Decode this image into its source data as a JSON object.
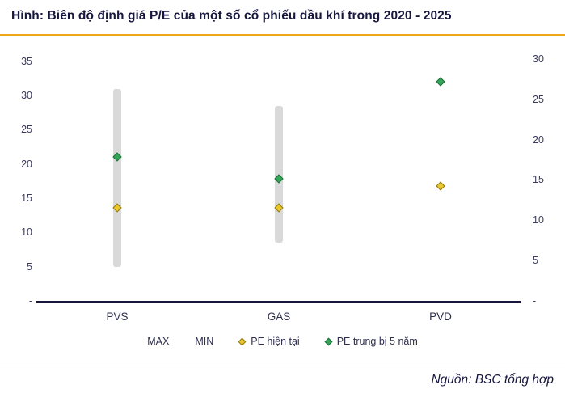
{
  "title": "Hình: Biên độ định giá P/E của một số cổ phiếu dầu khí trong 2020 - 2025",
  "footer": {
    "source": "Nguồn: BSC tổng hợp"
  },
  "colors": {
    "accent_rule": "#F2A71B",
    "footer_rule": "#CFCFCF",
    "title_text": "#16163F"
  },
  "chart_data": {
    "type": "scatter",
    "title": "Hình: Biên độ định giá P/E của một số cổ phiếu dầu khí trong 2020 - 2025",
    "categories": [
      "PVS",
      "GAS",
      "PVD"
    ],
    "left_axis": {
      "min": 0,
      "max": 35,
      "plot_max": 36.5,
      "ticks": [
        {
          "label": "35",
          "value": 35
        },
        {
          "label": "30",
          "value": 30
        },
        {
          "label": "25",
          "value": 25
        },
        {
          "label": "20",
          "value": 20
        },
        {
          "label": "15",
          "value": 15
        },
        {
          "label": "10",
          "value": 10
        },
        {
          "label": "5",
          "value": 5
        },
        {
          "label": "-",
          "value": 0
        }
      ]
    },
    "right_axis": {
      "min": 0,
      "max": 30,
      "plot_max": 31,
      "ticks": [
        {
          "label": "30",
          "value": 30
        },
        {
          "label": "25",
          "value": 25
        },
        {
          "label": "20",
          "value": 20
        },
        {
          "label": "15",
          "value": 15
        },
        {
          "label": "10",
          "value": 10
        },
        {
          "label": "5",
          "value": 5
        },
        {
          "label": "-",
          "value": 0
        }
      ]
    },
    "points": [
      {
        "category": "PVS",
        "axis": "left",
        "max": 31,
        "min": 5,
        "pe_current": 13.6,
        "pe_avg_5y": 21
      },
      {
        "category": "GAS",
        "axis": "left",
        "max": 28.5,
        "min": 8.5,
        "pe_current": 13.6,
        "pe_avg_5y": 17.8
      },
      {
        "category": "PVD",
        "axis": "right",
        "max": null,
        "min": null,
        "pe_current": 14.2,
        "pe_avg_5y": 27.2
      }
    ],
    "legend": {
      "max": "MAX",
      "min": "MIN",
      "pe_current": "PE hiện tại",
      "pe_avg_5y": "PE trung bị 5 năm"
    },
    "legend_position": "bottom",
    "grid": false,
    "colors": {
      "axis_line": "#16163F",
      "bar": "#D9D9D9",
      "pe_current_fill": "#E9C62C",
      "pe_current_stroke": "#8E7B14",
      "pe_avg_fill": "#35A457",
      "pe_avg_stroke": "#1B713A"
    }
  }
}
